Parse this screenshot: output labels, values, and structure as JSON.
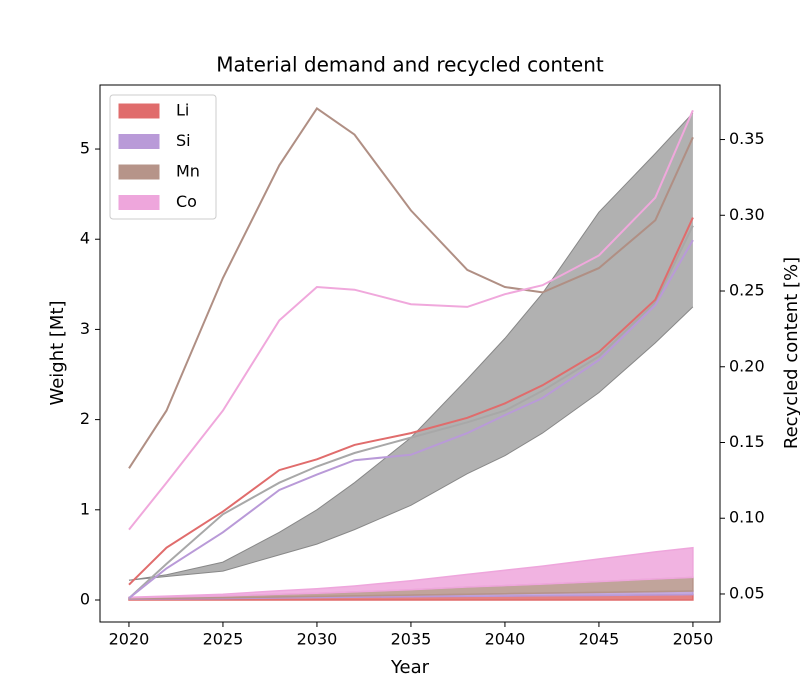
{
  "chart_data": {
    "type": "line",
    "title": "Material demand and recycled content",
    "xlabel": "Year",
    "ylabel": "Weight [Mt]",
    "y2label": "Recycled content [%]",
    "x": [
      2020,
      2022,
      2025,
      2028,
      2030,
      2032,
      2035,
      2038,
      2040,
      2042,
      2045,
      2048,
      2050
    ],
    "xlim": [
      2018.46,
      2051.44
    ],
    "xticks": [
      2020,
      2025,
      2030,
      2035,
      2040,
      2045,
      2050
    ],
    "ylim": [
      -0.244,
      5.71
    ],
    "yticks": [
      0,
      1,
      2,
      3,
      4,
      5
    ],
    "y2lim": [
      0.0315,
      0.386
    ],
    "y2ticks": [
      0.05,
      {
        "value": 0.1,
        "label": "0.10"
      },
      0.15,
      {
        "value": 0.2,
        "label": "0.20"
      },
      0.25,
      {
        "value": 0.3,
        "label": "0.30"
      },
      0.35
    ],
    "legend": "upper left",
    "series": [
      {
        "name": "Li",
        "color": "#e06c6c",
        "values": [
          0.01,
          0.012,
          0.016,
          0.022,
          0.027,
          0.03,
          0.035,
          0.04,
          0.043,
          0.046,
          0.05,
          0.055,
          0.06
        ]
      },
      {
        "name": "Si",
        "color": "#b99ad8",
        "values": [
          0.005,
          0.006,
          0.008,
          0.011,
          0.013,
          0.015,
          0.019,
          0.024,
          0.027,
          0.03,
          0.034,
          0.038,
          0.04
        ]
      },
      {
        "name": "Mn",
        "color": "#b69489",
        "values": [
          0.01,
          0.015,
          0.02,
          0.03,
          0.035,
          0.045,
          0.06,
          0.08,
          0.09,
          0.1,
          0.12,
          0.14,
          0.15
        ]
      },
      {
        "name": "Co",
        "color": "#eea6dc",
        "values": [
          0.005,
          0.01,
          0.02,
          0.04,
          0.05,
          0.065,
          0.1,
          0.14,
          0.17,
          0.2,
          0.25,
          0.3,
          0.33
        ]
      }
    ],
    "band": {
      "color": "#9e9e9e",
      "upper": [
        0.22,
        0.28,
        0.42,
        0.75,
        1.0,
        1.3,
        1.8,
        2.45,
        2.9,
        3.4,
        4.3,
        4.95,
        5.4
      ],
      "lower": [
        0.22,
        0.26,
        0.32,
        0.5,
        0.62,
        0.78,
        1.05,
        1.4,
        1.6,
        1.85,
        2.3,
        2.85,
        3.25
      ]
    },
    "lines": [
      {
        "color": "#b08f84",
        "values": [
          1.46,
          2.1,
          3.57,
          4.82,
          5.45,
          5.16,
          4.32,
          3.66,
          3.47,
          3.41,
          3.68,
          4.21,
          5.13
        ]
      },
      {
        "color": "#f0a8dc",
        "values": [
          0.78,
          1.3,
          2.1,
          3.1,
          3.47,
          3.44,
          3.28,
          3.25,
          3.39,
          3.49,
          3.82,
          4.46,
          5.43
        ]
      },
      {
        "color": "#a8a8a8",
        "values": [
          0.02,
          0.4,
          0.95,
          1.3,
          1.48,
          1.63,
          1.8,
          1.97,
          2.1,
          2.32,
          2.7,
          3.3,
          4.15
        ]
      },
      {
        "color": "#b99ad8",
        "values": [
          0.02,
          0.35,
          0.75,
          1.22,
          1.39,
          1.55,
          1.61,
          1.85,
          2.05,
          2.24,
          2.66,
          3.27,
          3.99
        ]
      },
      {
        "color": "#e06c6c",
        "values": [
          0.17,
          0.58,
          0.98,
          1.44,
          1.56,
          1.72,
          1.85,
          2.02,
          2.18,
          2.38,
          2.75,
          3.33,
          4.24
        ]
      }
    ]
  }
}
